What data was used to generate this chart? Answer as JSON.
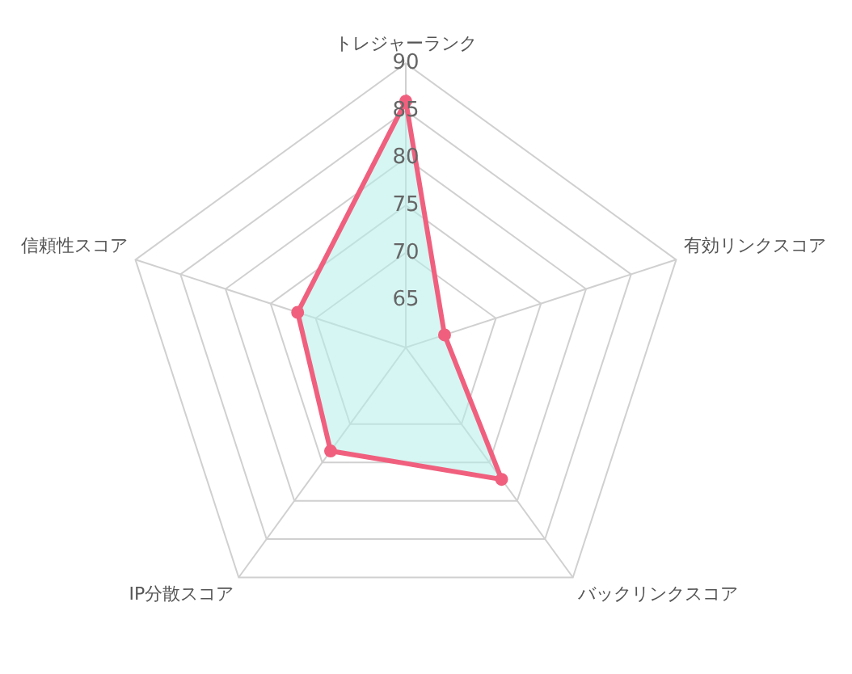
{
  "chart_data": {
    "type": "radar",
    "categories": [
      "トレジャーランク",
      "有効リンクスコア",
      "バックリンクスコア",
      "IP分散スコア",
      "信頼性スコア"
    ],
    "series": [
      {
        "color": "#f0607e",
        "values": [
          86,
          64.3,
          77.2,
          73.5,
          72
        ]
      }
    ],
    "ylim": [
      60,
      90
    ],
    "yticks": [
      65,
      70,
      75,
      80,
      85,
      90
    ],
    "grid": true,
    "legend": false,
    "marker": "circle"
  }
}
